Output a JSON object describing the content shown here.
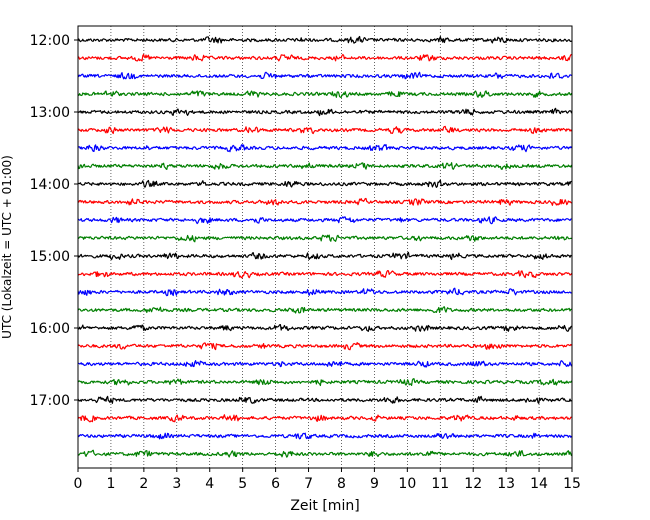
{
  "chart_data": {
    "type": "line",
    "chart_kind": "helicorder",
    "xlabel": "Zeit  [min]",
    "ylabel": "UTC (Lokalzeit = UTC + 01:00)",
    "xlim": [
      0,
      15
    ],
    "x_ticks": [
      0,
      1,
      2,
      3,
      4,
      5,
      6,
      7,
      8,
      9,
      10,
      11,
      12,
      13,
      14,
      15
    ],
    "x_tick_labels": [
      "0",
      "1",
      "2",
      "3",
      "4",
      "5",
      "6",
      "7",
      "8",
      "9",
      "10",
      "11",
      "12",
      "13",
      "14",
      "15"
    ],
    "y_tick_labels": [
      "12:00",
      "13:00",
      "14:00",
      "15:00",
      "16:00",
      "17:00"
    ],
    "grid": "vertical dotted at each minute",
    "trace_interval_minutes": 15,
    "trace_start_times": [
      "12:00",
      "12:15",
      "12:30",
      "12:45",
      "13:00",
      "13:15",
      "13:30",
      "13:45",
      "14:00",
      "14:15",
      "14:30",
      "14:45",
      "15:00",
      "15:15",
      "15:30",
      "15:45",
      "16:00",
      "16:15",
      "16:30",
      "16:45",
      "17:00",
      "17:15",
      "17:30",
      "17:45"
    ],
    "trace_colors": [
      "#000000",
      "#ff0000",
      "#0000ff",
      "#007f00"
    ],
    "trace_count": 24
  }
}
